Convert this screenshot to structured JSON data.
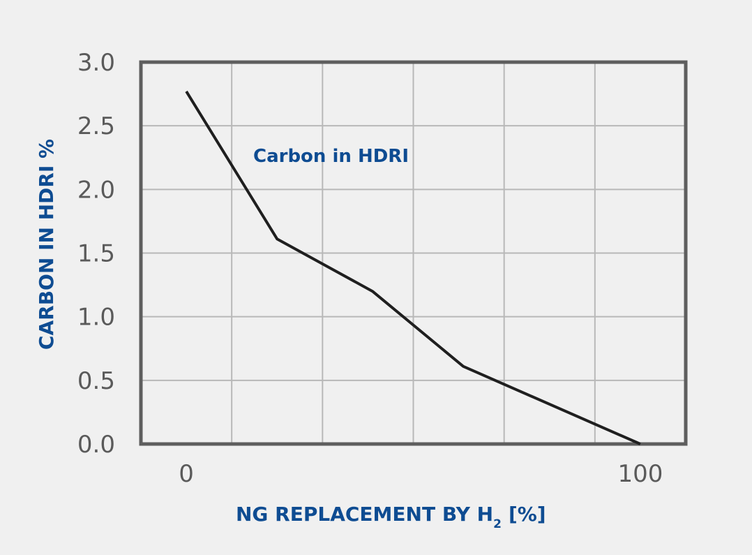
{
  "chart_data": {
    "type": "line",
    "title": "",
    "xlabel": "NG REPLACEMENT BY H",
    "xlabel_subscript": "2",
    "xlabel_suffix": "[%]",
    "ylabel": "CARBON IN HDRI %",
    "annotation": "Carbon in HDRI",
    "ylim": [
      0,
      3
    ],
    "xlim": [
      -10,
      110
    ],
    "yticks": [
      "0.0",
      "0.5",
      "1.0",
      "1.5",
      "2.0",
      "2.5",
      "3.0"
    ],
    "ytick_values": [
      0,
      0.5,
      1.0,
      1.5,
      2.0,
      2.5,
      3.0
    ],
    "xticks": [
      "0",
      "100"
    ],
    "xtick_values": [
      0,
      100
    ],
    "grid": true,
    "series": [
      {
        "x": [
          0,
          20,
          41,
          61,
          100
        ],
        "y": [
          2.77,
          1.61,
          1.2,
          0.61,
          0.0
        ]
      }
    ],
    "colors": {
      "line": "#1f1f1f",
      "grid": "#b8b8b8",
      "frame": "#5e5e5e",
      "label": "#0e4c92",
      "tick": "#5a5a5a",
      "background": "#f0f0f0"
    }
  }
}
